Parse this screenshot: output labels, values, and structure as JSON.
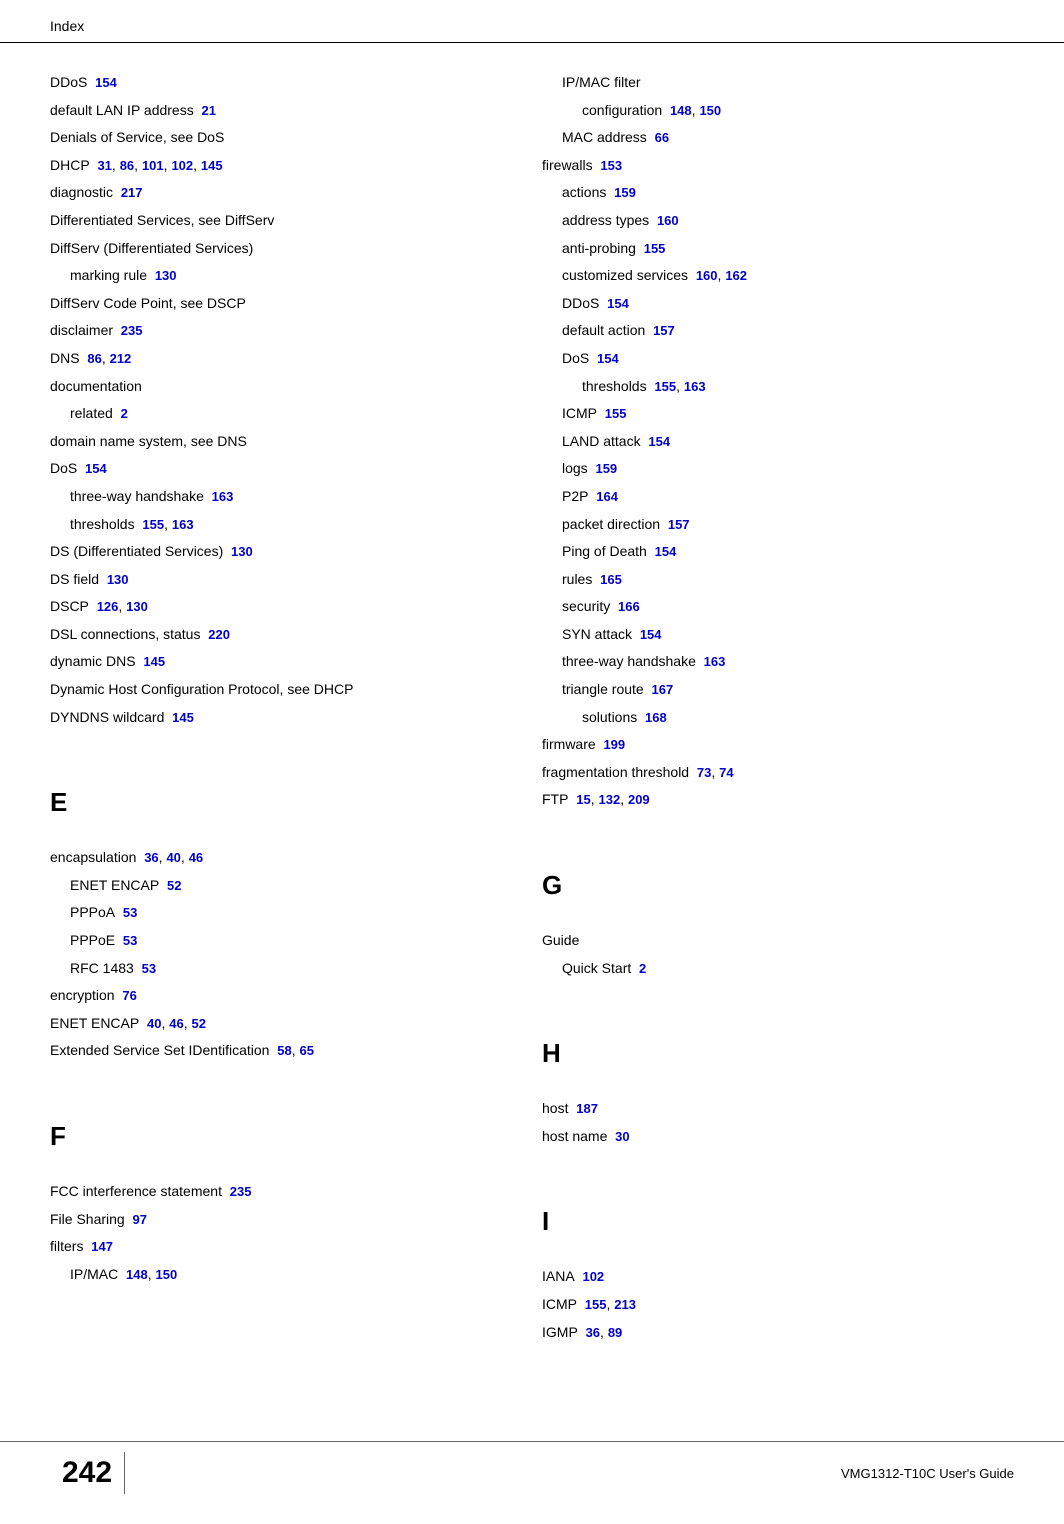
{
  "header": "Index",
  "footer": {
    "page": "242",
    "guide": "VMG1312-T10C User's Guide"
  },
  "link_color": "#0000cc",
  "text_color": "#000000",
  "font_family": "Verdana, Arial, sans-serif",
  "left": [
    {
      "t": "DDoS",
      "p": [
        "154"
      ]
    },
    {
      "t": "default LAN IP address",
      "p": [
        "21"
      ]
    },
    {
      "t": "Denials of Service, see DoS",
      "p": []
    },
    {
      "t": "DHCP",
      "p": [
        "31",
        "86",
        "101",
        "102",
        "145"
      ]
    },
    {
      "t": "diagnostic",
      "p": [
        "217"
      ]
    },
    {
      "t": "Differentiated Services, see DiffServ",
      "p": []
    },
    {
      "t": "DiffServ (Differentiated Services)",
      "p": []
    },
    {
      "t": "marking rule",
      "p": [
        "130"
      ],
      "lvl": 1
    },
    {
      "t": "DiffServ Code Point, see DSCP",
      "p": []
    },
    {
      "t": "disclaimer",
      "p": [
        "235"
      ]
    },
    {
      "t": "DNS",
      "p": [
        "86",
        "212"
      ]
    },
    {
      "t": "documentation",
      "p": []
    },
    {
      "t": "related",
      "p": [
        "2"
      ],
      "lvl": 1
    },
    {
      "t": "domain name system, see DNS",
      "p": []
    },
    {
      "t": "DoS",
      "p": [
        "154"
      ]
    },
    {
      "t": "three-way handshake",
      "p": [
        "163"
      ],
      "lvl": 1
    },
    {
      "t": "thresholds",
      "p": [
        "155",
        "163"
      ],
      "lvl": 1
    },
    {
      "t": "DS (Differentiated Services)",
      "p": [
        "130"
      ]
    },
    {
      "t": "DS field",
      "p": [
        "130"
      ]
    },
    {
      "t": "DSCP",
      "p": [
        "126",
        "130"
      ]
    },
    {
      "t": "DSL connections, status",
      "p": [
        "220"
      ]
    },
    {
      "t": "dynamic DNS",
      "p": [
        "145"
      ]
    },
    {
      "t": "Dynamic Host Configuration Protocol, see DHCP",
      "p": []
    },
    {
      "t": "DYNDNS wildcard",
      "p": [
        "145"
      ]
    },
    {
      "letter": "E"
    },
    {
      "t": "encapsulation",
      "p": [
        "36",
        "40",
        "46"
      ]
    },
    {
      "t": "ENET ENCAP",
      "p": [
        "52"
      ],
      "lvl": 1
    },
    {
      "t": "PPPoA",
      "p": [
        "53"
      ],
      "lvl": 1
    },
    {
      "t": "PPPoE",
      "p": [
        "53"
      ],
      "lvl": 1
    },
    {
      "t": "RFC 1483",
      "p": [
        "53"
      ],
      "lvl": 1
    },
    {
      "t": "encryption",
      "p": [
        "76"
      ]
    },
    {
      "t": "ENET ENCAP",
      "p": [
        "40",
        "46",
        "52"
      ]
    },
    {
      "t": "Extended Service Set IDentification",
      "p": [
        "58",
        "65"
      ]
    },
    {
      "letter": "F"
    },
    {
      "t": "FCC interference statement",
      "p": [
        "235"
      ]
    },
    {
      "t": "File Sharing",
      "p": [
        "97"
      ]
    },
    {
      "t": "filters",
      "p": [
        "147"
      ]
    },
    {
      "t": "IP/MAC",
      "p": [
        "148",
        "150"
      ],
      "lvl": 1
    }
  ],
  "right": [
    {
      "t": "IP/MAC filter",
      "p": [],
      "lvl": 1
    },
    {
      "t": "configuration",
      "p": [
        "148",
        "150"
      ],
      "lvl": 2
    },
    {
      "t": "MAC address",
      "p": [
        "66"
      ],
      "lvl": 1
    },
    {
      "t": "firewalls",
      "p": [
        "153"
      ]
    },
    {
      "t": "actions",
      "p": [
        "159"
      ],
      "lvl": 1
    },
    {
      "t": "address types",
      "p": [
        "160"
      ],
      "lvl": 1
    },
    {
      "t": "anti-probing",
      "p": [
        "155"
      ],
      "lvl": 1
    },
    {
      "t": "customized services",
      "p": [
        "160",
        "162"
      ],
      "lvl": 1
    },
    {
      "t": "DDoS",
      "p": [
        "154"
      ],
      "lvl": 1
    },
    {
      "t": "default action",
      "p": [
        "157"
      ],
      "lvl": 1
    },
    {
      "t": "DoS",
      "p": [
        "154"
      ],
      "lvl": 1
    },
    {
      "t": "thresholds",
      "p": [
        "155",
        "163"
      ],
      "lvl": 2
    },
    {
      "t": "ICMP",
      "p": [
        "155"
      ],
      "lvl": 1
    },
    {
      "t": "LAND attack",
      "p": [
        "154"
      ],
      "lvl": 1
    },
    {
      "t": "logs",
      "p": [
        "159"
      ],
      "lvl": 1
    },
    {
      "t": "P2P",
      "p": [
        "164"
      ],
      "lvl": 1
    },
    {
      "t": "packet direction",
      "p": [
        "157"
      ],
      "lvl": 1
    },
    {
      "t": "Ping of Death",
      "p": [
        "154"
      ],
      "lvl": 1
    },
    {
      "t": "rules",
      "p": [
        "165"
      ],
      "lvl": 1
    },
    {
      "t": "security",
      "p": [
        "166"
      ],
      "lvl": 1
    },
    {
      "t": "SYN attack",
      "p": [
        "154"
      ],
      "lvl": 1
    },
    {
      "t": "three-way handshake",
      "p": [
        "163"
      ],
      "lvl": 1
    },
    {
      "t": "triangle route",
      "p": [
        "167"
      ],
      "lvl": 1
    },
    {
      "t": "solutions",
      "p": [
        "168"
      ],
      "lvl": 2
    },
    {
      "t": "firmware",
      "p": [
        "199"
      ]
    },
    {
      "t": "fragmentation threshold",
      "p": [
        "73",
        "74"
      ]
    },
    {
      "t": "FTP",
      "p": [
        "15",
        "132",
        "209"
      ]
    },
    {
      "letter": "G"
    },
    {
      "t": "Guide",
      "p": []
    },
    {
      "t": "Quick Start",
      "p": [
        "2"
      ],
      "lvl": 1
    },
    {
      "letter": "H"
    },
    {
      "t": "host",
      "p": [
        "187"
      ]
    },
    {
      "t": "host name",
      "p": [
        "30"
      ]
    },
    {
      "letter": "I"
    },
    {
      "t": "IANA",
      "p": [
        "102"
      ]
    },
    {
      "t": "ICMP",
      "p": [
        "155",
        "213"
      ]
    },
    {
      "t": "IGMP",
      "p": [
        "36",
        "89"
      ]
    }
  ]
}
